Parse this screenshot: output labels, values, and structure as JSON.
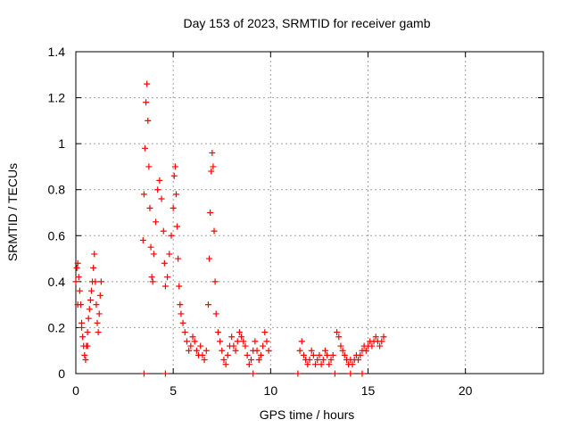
{
  "chart_data": {
    "type": "scatter",
    "title": "Day 153 of 2023, SRMTID for receiver gamb",
    "xlabel": "GPS time / hours",
    "ylabel": "SRMTID / TECUs",
    "xlim": [
      0,
      24
    ],
    "ylim": [
      0,
      1.4
    ],
    "x_ticks": [
      "0",
      "5",
      "10",
      "15",
      "20"
    ],
    "y_ticks": [
      "0",
      "0.2",
      "0.4",
      "0.6",
      "0.8",
      "1",
      "1.2",
      "1.4"
    ],
    "grid": true,
    "marker": "plus",
    "color": "#ff0000",
    "series": [
      {
        "points": [
          [
            0.0,
            0.4
          ],
          [
            0.05,
            0.46
          ],
          [
            0.1,
            0.48
          ],
          [
            0.15,
            0.42
          ],
          [
            0.2,
            0.36
          ],
          [
            0.25,
            0.3
          ],
          [
            0.3,
            0.22
          ],
          [
            0.35,
            0.16
          ],
          [
            0.4,
            0.12
          ],
          [
            0.45,
            0.08
          ],
          [
            0.5,
            0.06
          ],
          [
            0.55,
            0.12
          ],
          [
            0.6,
            0.18
          ],
          [
            0.65,
            0.24
          ],
          [
            0.7,
            0.28
          ],
          [
            0.75,
            0.32
          ],
          [
            0.8,
            0.36
          ],
          [
            0.85,
            0.4
          ],
          [
            0.9,
            0.46
          ],
          [
            0.95,
            0.52
          ],
          [
            1.0,
            0.4
          ],
          [
            1.05,
            0.3
          ],
          [
            1.1,
            0.22
          ],
          [
            1.15,
            0.18
          ],
          [
            1.2,
            0.26
          ],
          [
            1.25,
            0.34
          ],
          [
            1.3,
            0.4
          ],
          [
            0.1,
            0.3
          ],
          [
            0.3,
            0.2
          ],
          [
            0.6,
            0.12
          ],
          [
            3.45,
            0.58
          ],
          [
            3.5,
            0.78
          ],
          [
            3.55,
            0.98
          ],
          [
            3.6,
            1.18
          ],
          [
            3.65,
            1.26
          ],
          [
            3.7,
            1.1
          ],
          [
            3.75,
            0.9
          ],
          [
            3.8,
            0.72
          ],
          [
            3.85,
            0.55
          ],
          [
            3.9,
            0.42
          ],
          [
            3.95,
            0.4
          ],
          [
            4.0,
            0.52
          ],
          [
            4.1,
            0.66
          ],
          [
            4.2,
            0.8
          ],
          [
            4.3,
            0.84
          ],
          [
            4.4,
            0.76
          ],
          [
            4.5,
            0.62
          ],
          [
            4.55,
            0.48
          ],
          [
            4.6,
            0.38
          ],
          [
            4.7,
            0.42
          ],
          [
            4.8,
            0.52
          ],
          [
            4.9,
            0.6
          ],
          [
            5.0,
            0.72
          ],
          [
            5.05,
            0.86
          ],
          [
            5.1,
            0.9
          ],
          [
            5.15,
            0.78
          ],
          [
            5.2,
            0.64
          ],
          [
            5.25,
            0.5
          ],
          [
            5.3,
            0.38
          ],
          [
            5.35,
            0.3
          ],
          [
            5.4,
            0.26
          ],
          [
            5.5,
            0.22
          ],
          [
            5.6,
            0.18
          ],
          [
            5.7,
            0.14
          ],
          [
            5.8,
            0.1
          ],
          [
            5.9,
            0.12
          ],
          [
            6.0,
            0.16
          ],
          [
            6.1,
            0.14
          ],
          [
            6.2,
            0.1
          ],
          [
            6.3,
            0.08
          ],
          [
            6.4,
            0.12
          ],
          [
            6.5,
            0.08
          ],
          [
            6.6,
            0.06
          ],
          [
            6.7,
            0.1
          ],
          [
            6.8,
            0.3
          ],
          [
            6.85,
            0.5
          ],
          [
            6.9,
            0.7
          ],
          [
            6.95,
            0.88
          ],
          [
            7.0,
            0.96
          ],
          [
            7.05,
            0.9
          ],
          [
            7.1,
            0.62
          ],
          [
            7.15,
            0.4
          ],
          [
            7.2,
            0.26
          ],
          [
            7.3,
            0.18
          ],
          [
            7.4,
            0.14
          ],
          [
            7.5,
            0.1
          ],
          [
            7.6,
            0.06
          ],
          [
            7.7,
            0.04
          ],
          [
            7.8,
            0.08
          ],
          [
            7.9,
            0.12
          ],
          [
            8.0,
            0.16
          ],
          [
            8.1,
            0.12
          ],
          [
            8.2,
            0.1
          ],
          [
            8.3,
            0.14
          ],
          [
            8.4,
            0.18
          ],
          [
            8.5,
            0.16
          ],
          [
            8.6,
            0.14
          ],
          [
            8.7,
            0.12
          ],
          [
            8.8,
            0.08
          ],
          [
            8.9,
            0.04
          ],
          [
            9.0,
            0.06
          ],
          [
            9.1,
            0.1
          ],
          [
            9.2,
            0.14
          ],
          [
            9.3,
            0.1
          ],
          [
            9.4,
            0.06
          ],
          [
            9.5,
            0.08
          ],
          [
            9.6,
            0.12
          ],
          [
            9.7,
            0.18
          ],
          [
            9.8,
            0.14
          ],
          [
            9.9,
            0.1
          ],
          [
            11.5,
            0.1
          ],
          [
            11.6,
            0.14
          ],
          [
            11.7,
            0.08
          ],
          [
            11.8,
            0.06
          ],
          [
            11.9,
            0.04
          ],
          [
            12.0,
            0.06
          ],
          [
            12.1,
            0.1
          ],
          [
            12.2,
            0.08
          ],
          [
            12.3,
            0.04
          ],
          [
            12.4,
            0.06
          ],
          [
            12.5,
            0.08
          ],
          [
            12.6,
            0.04
          ],
          [
            12.7,
            0.06
          ],
          [
            12.8,
            0.1
          ],
          [
            12.9,
            0.08
          ],
          [
            13.0,
            0.04
          ],
          [
            13.1,
            0.06
          ],
          [
            13.2,
            0.08
          ],
          [
            13.4,
            0.18
          ],
          [
            13.5,
            0.16
          ],
          [
            13.6,
            0.12
          ],
          [
            13.7,
            0.1
          ],
          [
            13.8,
            0.08
          ],
          [
            13.9,
            0.06
          ],
          [
            14.0,
            0.04
          ],
          [
            14.1,
            0.06
          ],
          [
            14.2,
            0.04
          ],
          [
            14.3,
            0.06
          ],
          [
            14.4,
            0.08
          ],
          [
            14.5,
            0.06
          ],
          [
            14.6,
            0.08
          ],
          [
            14.7,
            0.1
          ],
          [
            14.8,
            0.12
          ],
          [
            14.9,
            0.1
          ],
          [
            15.0,
            0.12
          ],
          [
            15.1,
            0.14
          ],
          [
            15.2,
            0.12
          ],
          [
            15.3,
            0.14
          ],
          [
            15.4,
            0.16
          ],
          [
            15.5,
            0.14
          ],
          [
            15.6,
            0.12
          ],
          [
            15.7,
            0.14
          ],
          [
            15.8,
            0.16
          ]
        ]
      },
      {
        "points": [
          [
            3.5,
            0.0
          ],
          [
            4.6,
            0.0
          ],
          [
            9.1,
            0.0
          ],
          [
            11.4,
            0.0
          ],
          [
            13.3,
            0.0
          ],
          [
            14.1,
            0.0
          ],
          [
            14.7,
            0.0
          ]
        ]
      }
    ]
  }
}
